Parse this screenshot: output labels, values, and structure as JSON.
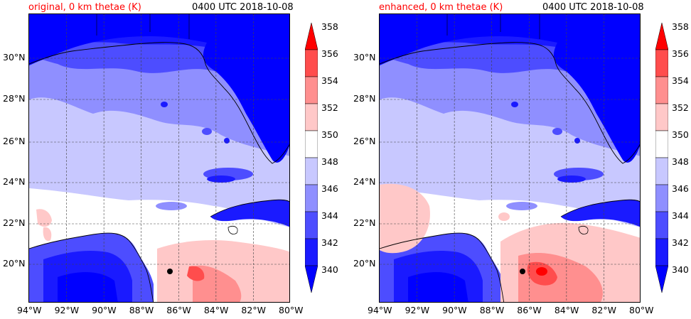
{
  "panels": [
    {
      "title": "original, 0 km thetae (K)",
      "time": "0400 UTC 2018-10-08",
      "variant": "original"
    },
    {
      "title": "enhanced, 0 km thetae (K)",
      "time": "0400 UTC 2018-10-08",
      "variant": "enhanced"
    }
  ],
  "lon_ticks": [
    "94°W",
    "92°W",
    "90°W",
    "88°W",
    "86°W",
    "84°W",
    "82°W",
    "80°W"
  ],
  "lat_ticks": [
    "30°N",
    "28°N",
    "26°N",
    "24°N",
    "22°N",
    "20°N"
  ],
  "colorbar": {
    "levels": [
      "358",
      "356",
      "354",
      "352",
      "350",
      "348",
      "346",
      "344",
      "342",
      "340"
    ],
    "colors": [
      "#ff0000",
      "#ff4d4d",
      "#ff8f8f",
      "#ffc8c8",
      "#ffffff",
      "#c8c8ff",
      "#8f8fff",
      "#4d4dff",
      "#1a1aff",
      "#0000ff"
    ]
  }
}
